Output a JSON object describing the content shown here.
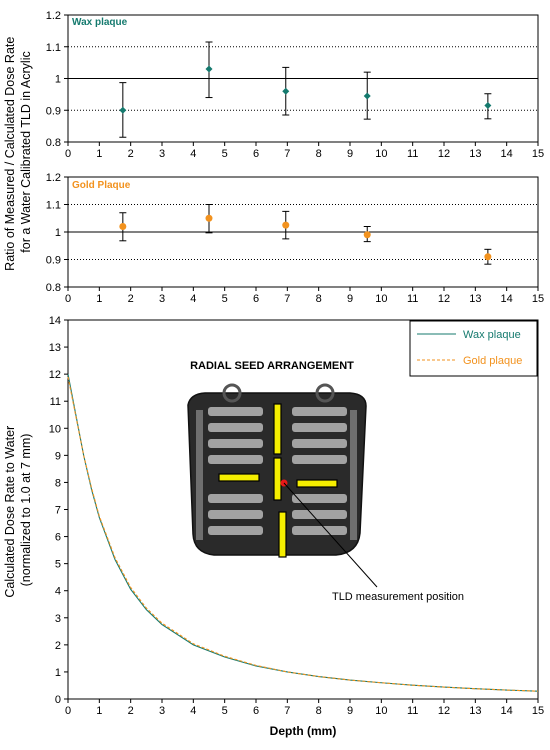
{
  "shared_ylabel": [
    "Ratio of Measured / Calculated Dose Rate",
    "for a Water Calibrated TLD in Acrylic"
  ],
  "colors": {
    "wax": "#157a6e",
    "gold": "#f2921e",
    "axis": "#000000"
  },
  "chart_data": [
    {
      "type": "scatter",
      "title": "Wax plaque",
      "xlim": [
        0,
        15
      ],
      "ylim": [
        0.8,
        1.2
      ],
      "xticks": [
        "0",
        "1",
        "2",
        "3",
        "4",
        "5",
        "6",
        "7",
        "8",
        "9",
        "10",
        "11",
        "12",
        "13",
        "14",
        "15"
      ],
      "yticks": [
        "0.8",
        "0.9",
        "1",
        "1.1",
        "1.2"
      ],
      "grid": "dotted lines at 0.9 and 1.1, solid line at 1.0",
      "series": [
        {
          "name": "Wax plaque",
          "points": [
            {
              "x": 1.75,
              "y": 0.9,
              "err_low": 0.815,
              "err_high": 0.987
            },
            {
              "x": 4.5,
              "y": 1.03,
              "err_low": 0.94,
              "err_high": 1.115
            },
            {
              "x": 6.95,
              "y": 0.96,
              "err_low": 0.885,
              "err_high": 1.035
            },
            {
              "x": 9.55,
              "y": 0.945,
              "err_low": 0.872,
              "err_high": 1.02
            },
            {
              "x": 13.4,
              "y": 0.915,
              "err_low": 0.873,
              "err_high": 0.952
            }
          ]
        }
      ]
    },
    {
      "type": "scatter",
      "title": "Gold Plaque",
      "xlim": [
        0,
        15
      ],
      "ylim": [
        0.8,
        1.2
      ],
      "xticks": [
        "0",
        "1",
        "2",
        "3",
        "4",
        "5",
        "6",
        "7",
        "8",
        "9",
        "10",
        "11",
        "12",
        "13",
        "14",
        "15"
      ],
      "yticks": [
        "0.8",
        "0.9",
        "1",
        "1.1",
        "1.2"
      ],
      "grid": "dotted lines at 0.9 and 1.1, solid line at 1.0",
      "series": [
        {
          "name": "Gold Plaque",
          "points": [
            {
              "x": 1.75,
              "y": 1.02,
              "err_low": 0.968,
              "err_high": 1.07
            },
            {
              "x": 4.5,
              "y": 1.05,
              "err_low": 0.997,
              "err_high": 1.1
            },
            {
              "x": 6.95,
              "y": 1.025,
              "err_low": 0.975,
              "err_high": 1.075
            },
            {
              "x": 9.55,
              "y": 0.99,
              "err_low": 0.965,
              "err_high": 1.02
            },
            {
              "x": 13.4,
              "y": 0.91,
              "err_low": 0.883,
              "err_high": 0.937
            }
          ]
        }
      ]
    },
    {
      "type": "line",
      "title": "",
      "xlabel": "Depth (mm)",
      "ylabel": [
        "Calculated Dose Rate to Water",
        "(normalized to 1.0 at 7 mm)"
      ],
      "xlim": [
        0,
        15
      ],
      "ylim": [
        0,
        14
      ],
      "xticks": [
        "0",
        "1",
        "2",
        "3",
        "4",
        "5",
        "6",
        "7",
        "8",
        "9",
        "10",
        "11",
        "12",
        "13",
        "14",
        "15"
      ],
      "yticks": [
        "0",
        "1",
        "2",
        "3",
        "4",
        "5",
        "6",
        "7",
        "8",
        "9",
        "10",
        "11",
        "12",
        "13",
        "14"
      ],
      "legend_position": "top-right",
      "series": [
        {
          "name": "Wax plaque",
          "style": "solid",
          "x": [
            0,
            0.25,
            0.5,
            0.75,
            1,
            1.5,
            2,
            2.5,
            3,
            4,
            5,
            6,
            7,
            8,
            9,
            10,
            11,
            12,
            13,
            14,
            15
          ],
          "y": [
            12.0,
            10.5,
            9.0,
            7.75,
            6.7,
            5.15,
            4.05,
            3.3,
            2.75,
            2.0,
            1.55,
            1.22,
            1.0,
            0.83,
            0.7,
            0.6,
            0.51,
            0.44,
            0.38,
            0.33,
            0.29
          ]
        },
        {
          "name": "Gold plaque",
          "style": "dashed",
          "x": [
            0,
            0.25,
            0.5,
            0.75,
            1,
            1.5,
            2,
            2.5,
            3,
            4,
            5,
            6,
            7,
            8,
            9,
            10,
            11,
            12,
            13,
            14,
            15
          ],
          "y": [
            11.9,
            10.45,
            9.0,
            7.8,
            6.75,
            5.22,
            4.12,
            3.36,
            2.8,
            2.04,
            1.58,
            1.24,
            1.0,
            0.83,
            0.7,
            0.6,
            0.51,
            0.44,
            0.38,
            0.33,
            0.29
          ]
        }
      ],
      "inset": {
        "title": "RADIAL SEED ARRANGEMENT",
        "annotation": "TLD measurement position"
      }
    }
  ]
}
